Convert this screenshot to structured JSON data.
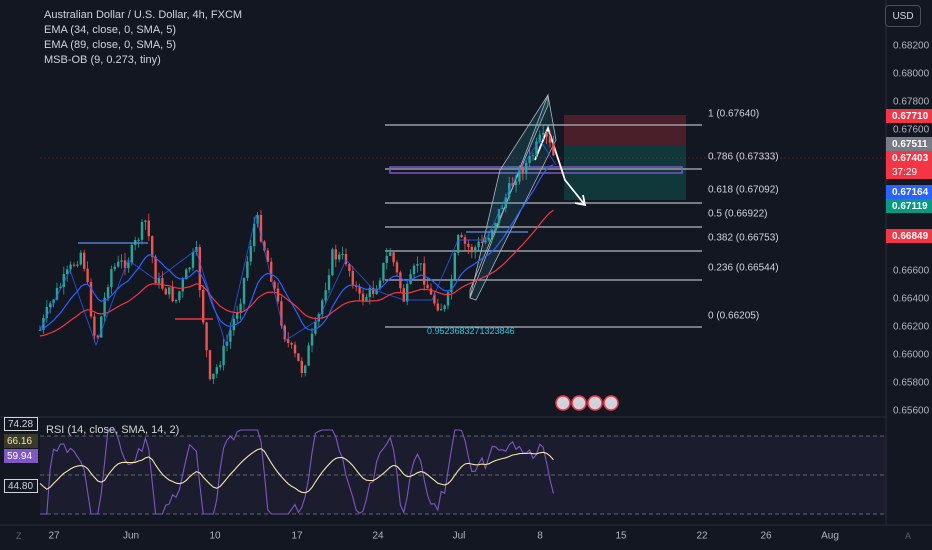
{
  "header": {
    "symbol_line": "Australian Dollar / U.S. Dollar, 4h, FXCM",
    "indicators": [
      "EMA (34, close, 0, SMA, 5)",
      "EMA (89, close, 0, SMA, 5)",
      "MSB-OB (9, 0.273, tiny)"
    ]
  },
  "currency_button": "USD",
  "price_axis": {
    "ticks": [
      "0.68200",
      "0.68000",
      "0.67800",
      "0.67600",
      "0.66600",
      "0.66400",
      "0.66200",
      "0.66000",
      "0.65800",
      "0.65600"
    ]
  },
  "price_tags": [
    {
      "label": "0.67710",
      "color": "#f23645"
    },
    {
      "label": "0.67511",
      "color": "#787b86"
    },
    {
      "label": "0.67403",
      "color": "#f23645"
    },
    {
      "label": "37:29",
      "color": "#f23645"
    },
    {
      "label": "0.67164",
      "color": "#2962ff"
    },
    {
      "label": "0.67119",
      "color": "#089981"
    },
    {
      "label": "0.66849",
      "color": "#f23645"
    }
  ],
  "fib_levels": [
    {
      "label": "1 (0.67640)"
    },
    {
      "label": "0.786 (0.67333)"
    },
    {
      "label": "0.618 (0.67092)"
    },
    {
      "label": "0.5 (0.66922)"
    },
    {
      "label": "0.382 (0.66753)"
    },
    {
      "label": "0.236 (0.66544)"
    },
    {
      "label": "0 (0.66205)"
    }
  ],
  "fib_ratio_text": "0.9523683271323846",
  "rsi": {
    "legend": "RSI (14, close, SMA, 14, 2)",
    "tags": [
      {
        "label": "74.28",
        "bg": "#131722",
        "fg": "#d1d4dc",
        "border": "#d1d4dc"
      },
      {
        "label": "66.16",
        "bg": "#3a3a2a",
        "fg": "#f7e7a6",
        "border": "#3a3a2a"
      },
      {
        "label": "59.94",
        "bg": "#7e57c2",
        "fg": "#ffffff",
        "border": "#7e57c2"
      },
      {
        "label": "44.80",
        "bg": "#131722",
        "fg": "#d1d4dc",
        "border": "#d1d4dc"
      }
    ]
  },
  "time_axis": {
    "ticks": [
      "27",
      "Jun",
      "10",
      "17",
      "24",
      "Jul",
      "8",
      "15",
      "22",
      "26",
      "Aug"
    ]
  },
  "corner_left": "Z",
  "corner_right": "A",
  "colors": {
    "up": "#26a69a",
    "down": "#ef5350",
    "ema34": "#2962ff",
    "ema89": "#f23645",
    "fib": "#b2b5be",
    "rsi": "#7e57c2",
    "rsi_ma": "#f7e7a6"
  }
}
